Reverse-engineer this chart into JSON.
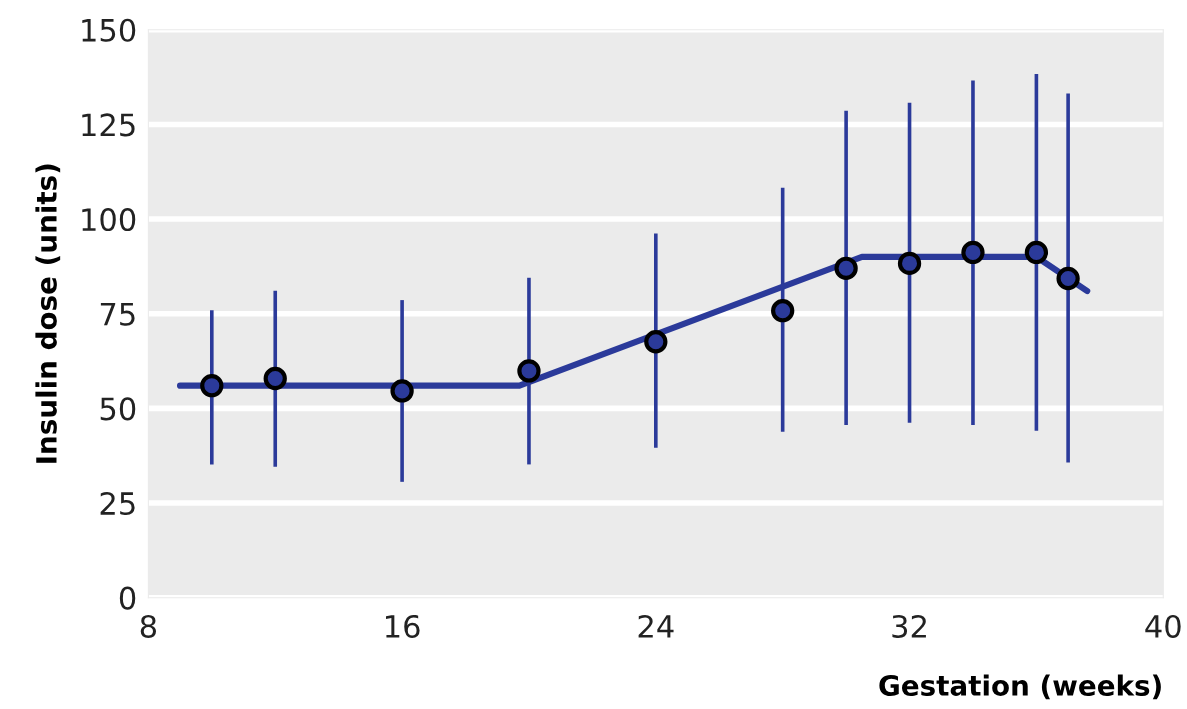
{
  "chart_data": {
    "type": "scatter",
    "xlabel": "Gestation (weeks)",
    "ylabel": "Insulin dose (units)",
    "xlim": [
      8,
      40
    ],
    "xticks": [
      8,
      16,
      24,
      32,
      40
    ],
    "ylim": [
      0,
      150
    ],
    "yticks": [
      0,
      25,
      50,
      75,
      100,
      125,
      150
    ],
    "grid": "y",
    "series": [
      {
        "marker": "circle",
        "color": "#2b3a9a",
        "x": [
          10,
          12,
          16,
          20,
          24,
          28,
          30,
          32,
          34,
          36,
          37
        ],
        "values": [
          56.0,
          57.9,
          54.6,
          59.9,
          67.6,
          75.8,
          87.0,
          88.3,
          91.2,
          91.2,
          84.3
        ],
        "errors": [
          [
            35.2,
            75.9
          ],
          [
            34.6,
            81.1
          ],
          [
            30.6,
            78.6
          ],
          [
            35.2,
            84.5
          ],
          [
            39.6,
            96.2
          ],
          [
            43.8,
            108.3
          ],
          [
            45.6,
            128.6
          ],
          [
            46.2,
            130.7
          ],
          [
            45.6,
            136.6
          ],
          [
            44.1,
            138.3
          ],
          [
            35.7,
            133.2
          ]
        ]
      },
      {
        "type": "line",
        "color": "#2b3a9a",
        "x": [
          9,
          19.7,
          30.5,
          36,
          37.6
        ],
        "values": [
          56,
          56,
          90,
          90,
          81
        ],
        "line_style": "solid"
      }
    ]
  }
}
